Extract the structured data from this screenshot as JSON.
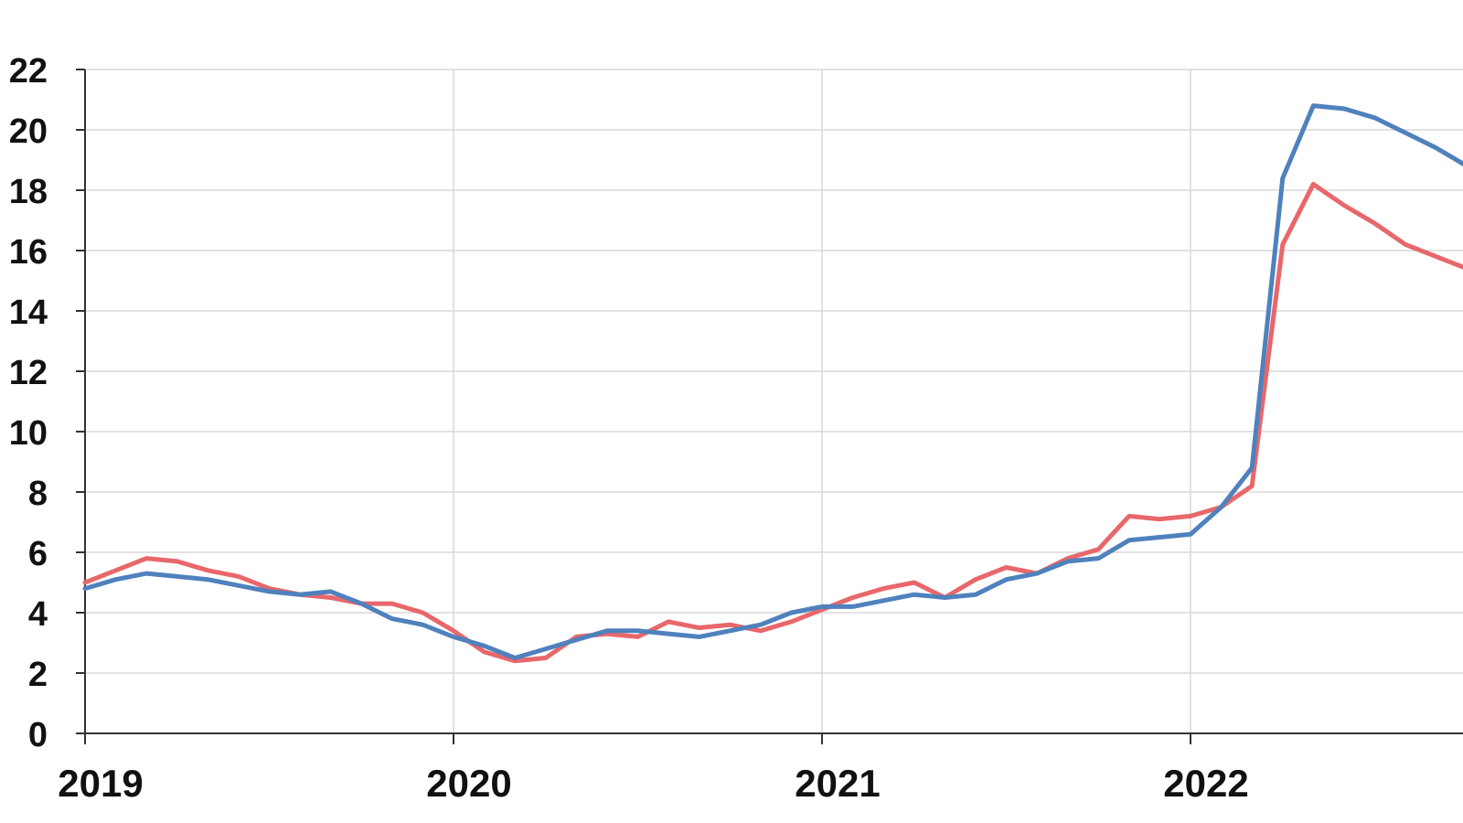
{
  "chart_data": {
    "type": "line",
    "title": "",
    "xlabel": "",
    "ylabel": "",
    "x_tick_labels": [
      "2019",
      "2020",
      "2021",
      "2022"
    ],
    "y_ticks": [
      0,
      2,
      4,
      6,
      8,
      10,
      12,
      14,
      16,
      18,
      20,
      22
    ],
    "ylim": [
      0,
      22
    ],
    "x_start": "2019-01",
    "x_frequency": "monthly",
    "grid": true,
    "legend": "none",
    "series": [
      {
        "color": "#e8676b",
        "values": [
          5.0,
          5.4,
          5.8,
          5.7,
          5.4,
          5.2,
          4.8,
          4.6,
          4.5,
          4.3,
          4.3,
          4.0,
          3.4,
          2.7,
          2.4,
          2.5,
          3.2,
          3.3,
          3.2,
          3.7,
          3.5,
          3.6,
          3.4,
          3.7,
          4.1,
          4.5,
          4.8,
          5.0,
          4.5,
          5.1,
          5.5,
          5.3,
          5.8,
          6.1,
          7.2,
          7.1,
          7.2,
          7.5,
          8.2,
          16.2,
          18.2,
          17.5,
          16.9,
          16.2,
          15.8,
          15.4
        ]
      },
      {
        "color": "#4f81bd",
        "values": [
          4.8,
          5.1,
          5.3,
          5.2,
          5.1,
          4.9,
          4.7,
          4.6,
          4.7,
          4.3,
          3.8,
          3.6,
          3.2,
          2.9,
          2.5,
          2.8,
          3.1,
          3.4,
          3.4,
          3.3,
          3.2,
          3.4,
          3.6,
          4.0,
          4.2,
          4.2,
          4.4,
          4.6,
          4.5,
          4.6,
          5.1,
          5.3,
          5.7,
          5.8,
          6.4,
          6.5,
          6.6,
          7.5,
          8.8,
          18.4,
          20.8,
          20.7,
          20.4,
          19.9,
          19.4,
          18.8
        ]
      }
    ]
  }
}
